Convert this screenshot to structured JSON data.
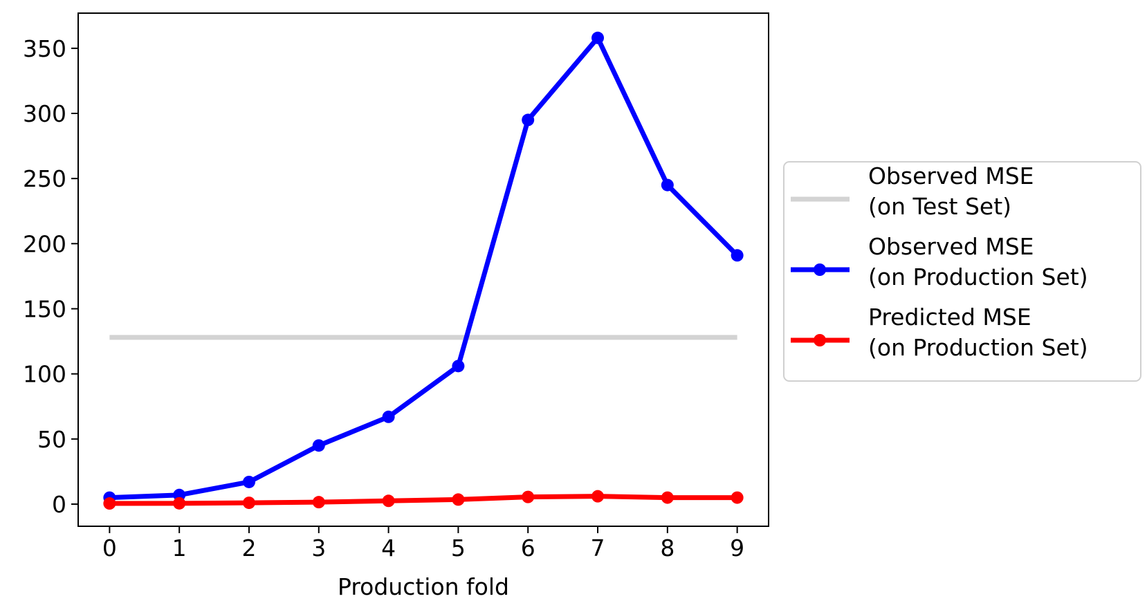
{
  "chart_data": {
    "type": "line",
    "xlabel": "Production fold",
    "ylabel": "",
    "title": "",
    "x": [
      0,
      1,
      2,
      3,
      4,
      5,
      6,
      7,
      8,
      9
    ],
    "xlim": [
      -0.45,
      9.45
    ],
    "ylim": [
      -17,
      377
    ],
    "xticks": [
      0,
      1,
      2,
      3,
      4,
      5,
      6,
      7,
      8,
      9
    ],
    "yticks": [
      0,
      50,
      100,
      150,
      200,
      250,
      300,
      350
    ],
    "grid": false,
    "legend_placement": "outside-right",
    "series": [
      {
        "name": "Observed MSE\n(on Test Set)",
        "label_lines": [
          "Observed MSE",
          "(on Test Set)"
        ],
        "color": "#d3d3d3",
        "markers": false,
        "values": [
          128,
          128,
          128,
          128,
          128,
          128,
          128,
          128,
          128,
          128
        ]
      },
      {
        "name": "Observed MSE\n(on Production Set)",
        "label_lines": [
          "Observed MSE",
          "(on Production Set)"
        ],
        "color": "#0000ff",
        "markers": true,
        "values": [
          5,
          7,
          17,
          45,
          67,
          106,
          295,
          358,
          245,
          191
        ]
      },
      {
        "name": "Predicted MSE\n(on Production Set)",
        "label_lines": [
          "Predicted MSE",
          "(on Production Set)"
        ],
        "color": "#ff0000",
        "markers": true,
        "values": [
          0.5,
          0.6,
          1,
          1.5,
          2.5,
          3.5,
          5.5,
          6,
          5,
          5
        ]
      }
    ]
  }
}
